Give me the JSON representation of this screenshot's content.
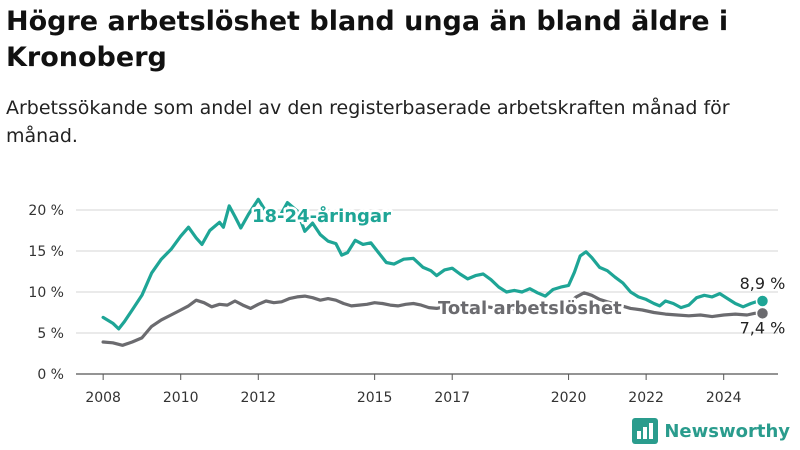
{
  "header": {
    "title": "Högre arbetslöshet bland unga än bland äldre i Kronoberg",
    "subtitle": "Arbetssökande som andel av den registerbaserade arbetskraften månad för månad."
  },
  "brand": {
    "name": "Newsworthy",
    "icon": "bar-chart-logo-icon",
    "color": "#2a9c8d"
  },
  "chart_data": {
    "type": "line",
    "title": "Högre arbetslöshet bland unga än bland äldre i Kronoberg",
    "ylim": [
      0,
      20
    ],
    "xlim": [
      2007.3,
      2025.4
    ],
    "y_ticks": [
      0,
      5,
      10,
      15,
      20
    ],
    "y_tick_labels": [
      "0 %",
      "5 %",
      "10 %",
      "15 %",
      "20 %"
    ],
    "x_ticks": [
      2008,
      2010,
      2012,
      2015,
      2017,
      2020,
      2022,
      2024
    ],
    "x_tick_labels": [
      "2008",
      "2010",
      "2012",
      "2015",
      "2017",
      "2020",
      "2022",
      "2024"
    ],
    "grid": "horizontal",
    "series": [
      {
        "name": "18-24-åringar",
        "color": "#1ea596",
        "end_label": "8,9 %",
        "points": [
          [
            2008.0,
            6.9
          ],
          [
            2008.25,
            6.2
          ],
          [
            2008.4,
            5.5
          ],
          [
            2008.55,
            6.4
          ],
          [
            2008.75,
            7.8
          ],
          [
            2009.0,
            9.6
          ],
          [
            2009.25,
            12.3
          ],
          [
            2009.5,
            14.0
          ],
          [
            2009.75,
            15.2
          ],
          [
            2010.0,
            16.8
          ],
          [
            2010.2,
            17.9
          ],
          [
            2010.4,
            16.6
          ],
          [
            2010.55,
            15.8
          ],
          [
            2010.75,
            17.5
          ],
          [
            2011.0,
            18.5
          ],
          [
            2011.1,
            17.9
          ],
          [
            2011.25,
            20.5
          ],
          [
            2011.4,
            19.2
          ],
          [
            2011.55,
            17.8
          ],
          [
            2011.75,
            19.5
          ],
          [
            2012.0,
            21.3
          ],
          [
            2012.2,
            19.8
          ],
          [
            2012.35,
            18.6
          ],
          [
            2012.55,
            19.2
          ],
          [
            2012.75,
            20.9
          ],
          [
            2013.0,
            19.9
          ],
          [
            2013.2,
            17.4
          ],
          [
            2013.4,
            18.4
          ],
          [
            2013.6,
            17.0
          ],
          [
            2013.8,
            16.2
          ],
          [
            2014.0,
            15.9
          ],
          [
            2014.15,
            14.5
          ],
          [
            2014.3,
            14.8
          ],
          [
            2014.5,
            16.3
          ],
          [
            2014.7,
            15.8
          ],
          [
            2014.9,
            16.0
          ],
          [
            2015.1,
            14.8
          ],
          [
            2015.3,
            13.6
          ],
          [
            2015.5,
            13.4
          ],
          [
            2015.75,
            14.0
          ],
          [
            2016.0,
            14.1
          ],
          [
            2016.25,
            13.0
          ],
          [
            2016.45,
            12.6
          ],
          [
            2016.6,
            12.0
          ],
          [
            2016.8,
            12.7
          ],
          [
            2017.0,
            12.9
          ],
          [
            2017.2,
            12.2
          ],
          [
            2017.4,
            11.6
          ],
          [
            2017.6,
            12.0
          ],
          [
            2017.8,
            12.2
          ],
          [
            2018.0,
            11.5
          ],
          [
            2018.2,
            10.6
          ],
          [
            2018.4,
            10.0
          ],
          [
            2018.6,
            10.2
          ],
          [
            2018.8,
            10.0
          ],
          [
            2019.0,
            10.4
          ],
          [
            2019.2,
            9.9
          ],
          [
            2019.4,
            9.5
          ],
          [
            2019.6,
            10.3
          ],
          [
            2019.8,
            10.6
          ],
          [
            2020.0,
            10.8
          ],
          [
            2020.15,
            12.4
          ],
          [
            2020.3,
            14.4
          ],
          [
            2020.45,
            14.9
          ],
          [
            2020.6,
            14.2
          ],
          [
            2020.8,
            13.0
          ],
          [
            2021.0,
            12.6
          ],
          [
            2021.2,
            11.8
          ],
          [
            2021.4,
            11.1
          ],
          [
            2021.6,
            10.0
          ],
          [
            2021.8,
            9.4
          ],
          [
            2022.0,
            9.1
          ],
          [
            2022.2,
            8.6
          ],
          [
            2022.35,
            8.3
          ],
          [
            2022.5,
            8.9
          ],
          [
            2022.7,
            8.6
          ],
          [
            2022.9,
            8.1
          ],
          [
            2023.1,
            8.4
          ],
          [
            2023.3,
            9.3
          ],
          [
            2023.5,
            9.6
          ],
          [
            2023.7,
            9.4
          ],
          [
            2023.9,
            9.8
          ],
          [
            2024.1,
            9.2
          ],
          [
            2024.3,
            8.6
          ],
          [
            2024.5,
            8.2
          ],
          [
            2024.7,
            8.6
          ],
          [
            2024.9,
            8.9
          ],
          [
            2025.0,
            8.9
          ]
        ]
      },
      {
        "name": "Total arbetslöshet",
        "color": "#6b6b6f",
        "end_label": "7,4 %",
        "points": [
          [
            2008.0,
            3.9
          ],
          [
            2008.25,
            3.8
          ],
          [
            2008.5,
            3.5
          ],
          [
            2008.75,
            3.9
          ],
          [
            2009.0,
            4.4
          ],
          [
            2009.25,
            5.8
          ],
          [
            2009.5,
            6.6
          ],
          [
            2009.75,
            7.2
          ],
          [
            2010.0,
            7.8
          ],
          [
            2010.2,
            8.3
          ],
          [
            2010.4,
            9.0
          ],
          [
            2010.6,
            8.7
          ],
          [
            2010.8,
            8.2
          ],
          [
            2011.0,
            8.5
          ],
          [
            2011.2,
            8.4
          ],
          [
            2011.4,
            8.9
          ],
          [
            2011.6,
            8.4
          ],
          [
            2011.8,
            8.0
          ],
          [
            2012.0,
            8.5
          ],
          [
            2012.2,
            8.9
          ],
          [
            2012.4,
            8.7
          ],
          [
            2012.6,
            8.8
          ],
          [
            2012.8,
            9.2
          ],
          [
            2013.0,
            9.4
          ],
          [
            2013.2,
            9.5
          ],
          [
            2013.4,
            9.3
          ],
          [
            2013.6,
            9.0
          ],
          [
            2013.8,
            9.2
          ],
          [
            2014.0,
            9.0
          ],
          [
            2014.2,
            8.6
          ],
          [
            2014.4,
            8.3
          ],
          [
            2014.6,
            8.4
          ],
          [
            2014.8,
            8.5
          ],
          [
            2015.0,
            8.7
          ],
          [
            2015.2,
            8.6
          ],
          [
            2015.4,
            8.4
          ],
          [
            2015.6,
            8.3
          ],
          [
            2015.8,
            8.5
          ],
          [
            2016.0,
            8.6
          ],
          [
            2016.2,
            8.4
          ],
          [
            2016.4,
            8.1
          ],
          [
            2016.6,
            8.0
          ],
          [
            2016.8,
            8.2
          ],
          [
            2017.0,
            8.3
          ],
          [
            2017.3,
            8.2
          ],
          [
            2017.6,
            8.1
          ],
          [
            2017.9,
            8.2
          ],
          [
            2018.2,
            8.0
          ],
          [
            2018.5,
            7.9
          ],
          [
            2018.8,
            8.1
          ],
          [
            2019.1,
            8.0
          ],
          [
            2019.4,
            7.9
          ],
          [
            2019.7,
            8.3
          ],
          [
            2020.0,
            8.6
          ],
          [
            2020.2,
            9.4
          ],
          [
            2020.4,
            9.9
          ],
          [
            2020.6,
            9.6
          ],
          [
            2020.8,
            9.1
          ],
          [
            2021.0,
            8.8
          ],
          [
            2021.3,
            8.4
          ],
          [
            2021.6,
            8.0
          ],
          [
            2021.9,
            7.8
          ],
          [
            2022.2,
            7.5
          ],
          [
            2022.5,
            7.3
          ],
          [
            2022.8,
            7.2
          ],
          [
            2023.1,
            7.1
          ],
          [
            2023.4,
            7.2
          ],
          [
            2023.7,
            7.0
          ],
          [
            2024.0,
            7.2
          ],
          [
            2024.3,
            7.3
          ],
          [
            2024.6,
            7.2
          ],
          [
            2024.8,
            7.4
          ],
          [
            2025.0,
            7.4
          ]
        ]
      }
    ]
  }
}
